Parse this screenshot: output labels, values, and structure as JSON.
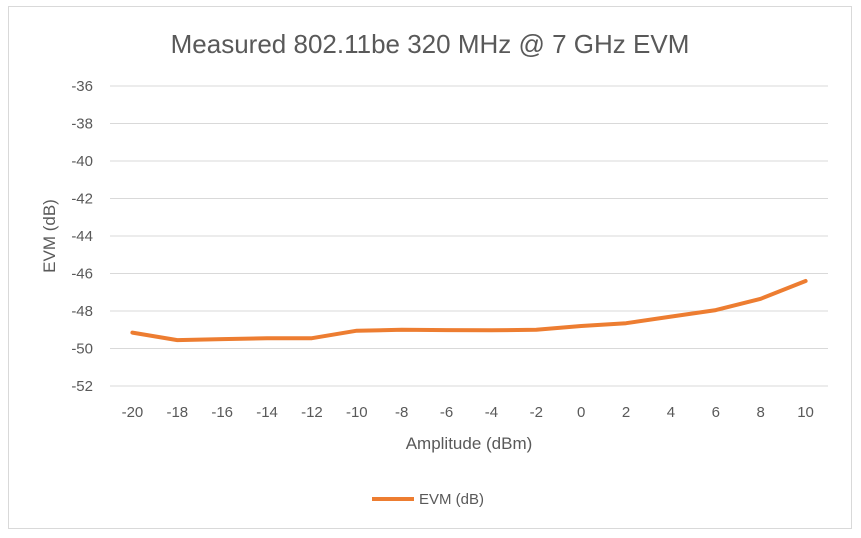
{
  "chart_data": {
    "type": "line",
    "title": "Measured 802.11be 320 MHz @ 7 GHz EVM",
    "xlabel": "Amplitude (dBm)",
    "ylabel": "EVM (dB)",
    "x": [
      -20,
      -18,
      -16,
      -14,
      -12,
      -10,
      -8,
      -6,
      -4,
      -2,
      0,
      2,
      4,
      6,
      8,
      10
    ],
    "x_tick_labels": [
      "-20",
      "-18",
      "-16",
      "-14",
      "-12",
      "-10",
      "-8",
      "-6",
      "-4",
      "-2",
      "0",
      "2",
      "4",
      "6",
      "8",
      "10"
    ],
    "y_ticks": [
      -36,
      -38,
      -40,
      -42,
      -44,
      -46,
      -48,
      -50,
      -52
    ],
    "ylim": [
      -52,
      -36
    ],
    "grid": true,
    "legend_position": "bottom",
    "series": [
      {
        "name": "EVM (dB)",
        "color": "#ED7D31",
        "values": [
          -49.15,
          -49.55,
          -49.5,
          -49.45,
          -49.45,
          -49.05,
          -49.0,
          -49.02,
          -49.03,
          -49.0,
          -48.8,
          -48.65,
          -48.3,
          -47.95,
          -47.35,
          -46.4
        ]
      }
    ]
  }
}
